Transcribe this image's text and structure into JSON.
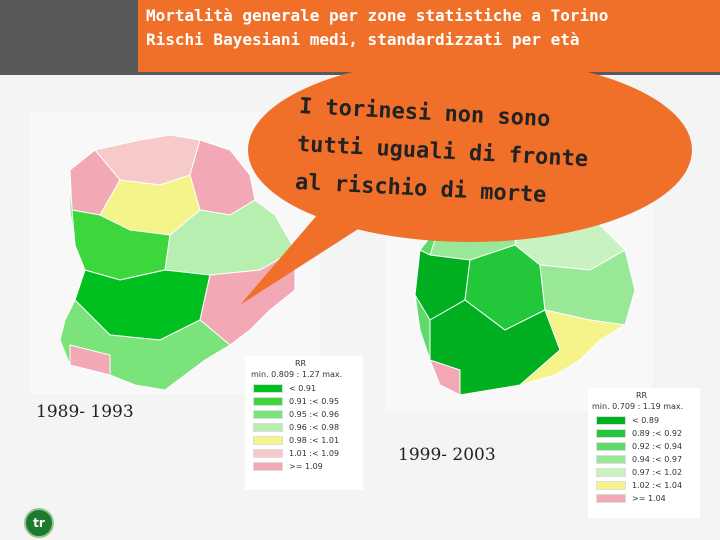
{
  "title": {
    "line1": "Mortalità generale per zone statistiche a Torino",
    "line2": "Rischi Bayesiani medi, standardizzati per età"
  },
  "bubble": {
    "line1": "I torinesi non sono",
    "line2": "tutti uguali di fronte",
    "line3": "al rischio di morte"
  },
  "maps": {
    "left": {
      "period": "1989- 1993",
      "legend": {
        "header": "RR",
        "range": "min. 0.809 : 1.27 max.",
        "classes": [
          {
            "label": "< 0.91",
            "color": "#00c020"
          },
          {
            "label": "0.91 :< 0.95",
            "color": "#3dd63d"
          },
          {
            "label": "0.95 :< 0.96",
            "color": "#7ae37a"
          },
          {
            "label": "0.96 :< 0.98",
            "color": "#b6efb0"
          },
          {
            "label": "0.98 :< 1.01",
            "color": "#f4f48a"
          },
          {
            "label": "1.01 :< 1.09",
            "color": "#f7c9c9"
          },
          {
            "label": ">= 1.09",
            "color": "#f3a9b5"
          }
        ]
      }
    },
    "right": {
      "period": "1999- 2003",
      "legend": {
        "header": "RR",
        "range": "min. 0.709 : 1.19 max.",
        "classes": [
          {
            "label": "< 0.89",
            "color": "#00b020"
          },
          {
            "label": "0.89 :< 0.92",
            "color": "#22c83a"
          },
          {
            "label": "0.92 :< 0.94",
            "color": "#5fd96a"
          },
          {
            "label": "0.94 :< 0.97",
            "color": "#98e898"
          },
          {
            "label": "0.97 :< 1.02",
            "color": "#c8f2c0"
          },
          {
            "label": "1.02 :< 1.04",
            "color": "#f4f48a"
          },
          {
            "label": ">= 1.04",
            "color": "#f3a9b5"
          }
        ]
      }
    }
  },
  "logo": {
    "text": "tr"
  }
}
